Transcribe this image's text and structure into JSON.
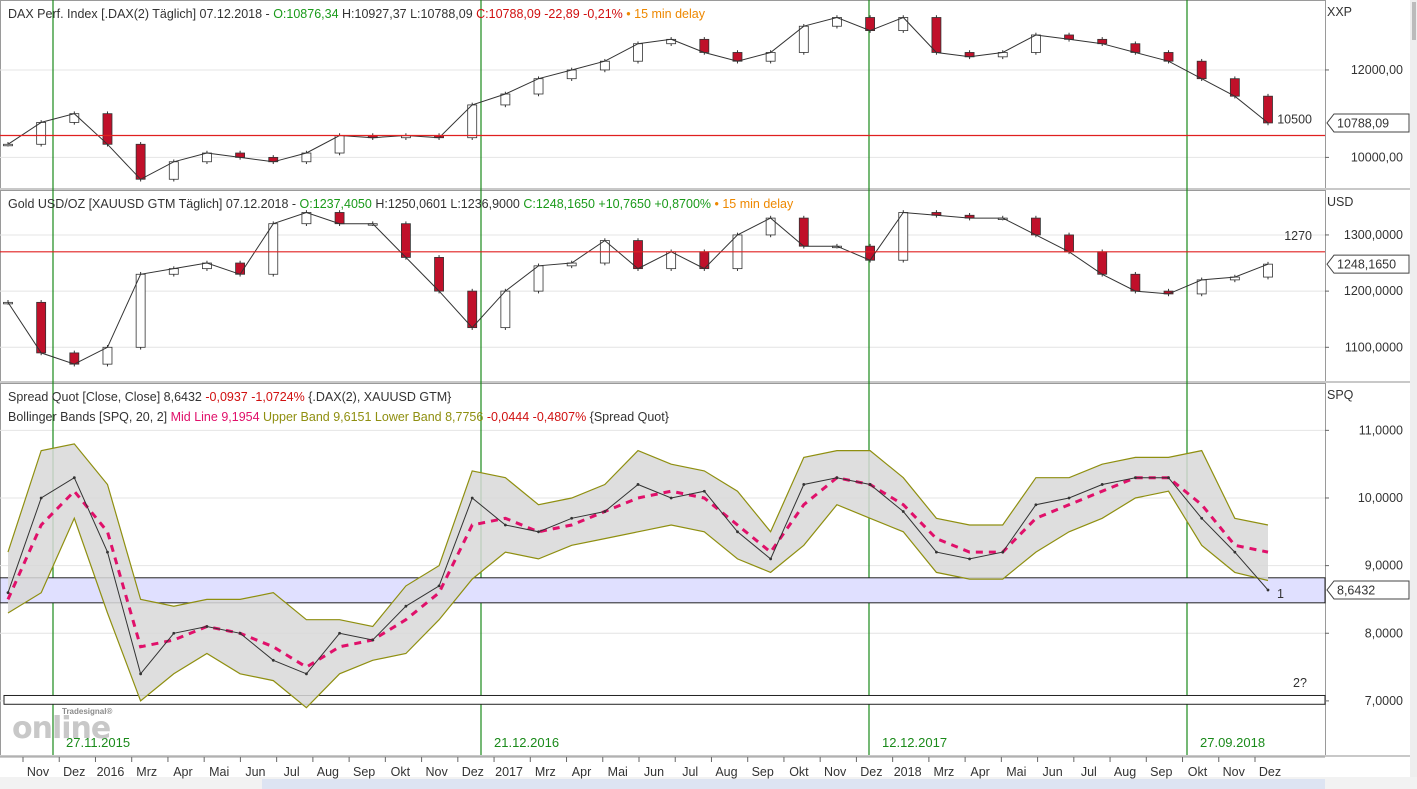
{
  "panels": {
    "dax": {
      "header": [
        {
          "text": "DAX Perf. Index [.DAX(2) Täglich] 07.12.2018 - ",
          "color": "black"
        },
        {
          "text": "O:10876,34 ",
          "color": "green"
        },
        {
          "text": "H:10927,37 L:10788,09 ",
          "color": "black"
        },
        {
          "text": "C:10788,09 -22,89 -0,21% ",
          "color": "red"
        },
        {
          "text": "• 15 min delay",
          "color": "orange"
        }
      ],
      "unit": "XXP",
      "tick_labels": [
        "12000,00",
        "10000,00"
      ],
      "last_value": "10788,09",
      "hline_label": "10500"
    },
    "gold": {
      "header": [
        {
          "text": "Gold USD/OZ [XAUUSD GTM Täglich] 07.12.2018 - ",
          "color": "black"
        },
        {
          "text": "O:1237,4050 ",
          "color": "green"
        },
        {
          "text": "H:1250,0601 L:1236,9000 ",
          "color": "black"
        },
        {
          "text": "C:1248,1650 +10,7650 +0,8700% ",
          "color": "green"
        },
        {
          "text": "• 15 min delay",
          "color": "orange"
        }
      ],
      "unit": "USD",
      "tick_labels": [
        "1300,0000",
        "1200,0000",
        "1100,0000"
      ],
      "last_value": "1248,1650",
      "hline_label": "1270"
    },
    "spread": {
      "header1": [
        {
          "text": "Spread Quot [Close, Close] ",
          "color": "black"
        },
        {
          "text": "8,6432 ",
          "color": "black"
        },
        {
          "text": "-0,0937 -1,0724% ",
          "color": "red"
        },
        {
          "text": "{.DAX(2), XAUUSD GTM}",
          "color": "black"
        }
      ],
      "header2": [
        {
          "text": "Bollinger Bands [SPQ, 20, 2] ",
          "color": "black"
        },
        {
          "text": "Mid Line 9,1954 ",
          "color": "pink"
        },
        {
          "text": "Upper Band 9,6151 ",
          "color": "olive"
        },
        {
          "text": "Lower Band 8,7756 ",
          "color": "olive"
        },
        {
          "text": "-0,0444 -0,4807% ",
          "color": "red"
        },
        {
          "text": "{Spread Quot}",
          "color": "black"
        }
      ],
      "unit": "SPQ",
      "tick_labels": [
        "11,0000",
        "10,0000",
        "9,0000",
        "8,0000",
        "7,0000"
      ],
      "last_value": "8,6432",
      "annotation_1": "1",
      "annotation_2": "2?"
    }
  },
  "date_markers": [
    "27.11.2015",
    "21.12.2016",
    "12.12.2017",
    "27.09.2018"
  ],
  "month_labels": [
    "Nov",
    "Dez",
    "2016",
    "Mrz",
    "Apr",
    "Mai",
    "Jun",
    "Jul",
    "Aug",
    "Sep",
    "Okt",
    "Nov",
    "Dez",
    "2017",
    "Mrz",
    "Apr",
    "Mai",
    "Jun",
    "Jul",
    "Aug",
    "Sep",
    "Okt",
    "Nov",
    "Dez",
    "2018",
    "Mrz",
    "Apr",
    "Mai",
    "Jun",
    "Jul",
    "Aug",
    "Sep",
    "Okt",
    "Nov",
    "Dez"
  ],
  "logo": {
    "small": "Tradesignal®",
    "main": "online"
  },
  "colors": {
    "up": "#ffffff",
    "down": "#c0102a",
    "wick": "#333333",
    "hline": "#e02020",
    "vline": "#1a8a1a",
    "band_fill": "#d8d8d8",
    "band_line": "#8f8f10",
    "mid_line": "#e0106a",
    "zone_fill": "#e0e0ff"
  },
  "chart_data": [
    {
      "type": "line",
      "title": "DAX Perf. Index [.DAX(2) Täglich]",
      "x": [
        "2015-10",
        "2015-11",
        "2015-12",
        "2016-01",
        "2016-02",
        "2016-03",
        "2016-04",
        "2016-05",
        "2016-06",
        "2016-07",
        "2016-08",
        "2016-09",
        "2016-10",
        "2016-11",
        "2016-12",
        "2017-01",
        "2017-02",
        "2017-03",
        "2017-04",
        "2017-05",
        "2017-06",
        "2017-07",
        "2017-08",
        "2017-09",
        "2017-10",
        "2017-11",
        "2017-12",
        "2018-01",
        "2018-02",
        "2018-03",
        "2018-04",
        "2018-05",
        "2018-06",
        "2018-07",
        "2018-08",
        "2018-09",
        "2018-10",
        "2018-11",
        "2018-12"
      ],
      "series": [
        {
          "name": "DAX",
          "values": [
            10300,
            10800,
            11000,
            10300,
            9500,
            9900,
            10100,
            10000,
            9900,
            10100,
            10500,
            10450,
            10500,
            10450,
            11200,
            11450,
            11800,
            12000,
            12200,
            12600,
            12700,
            12400,
            12200,
            12400,
            13000,
            13200,
            12900,
            13200,
            12400,
            12300,
            12400,
            12800,
            12700,
            12600,
            12400,
            12200,
            11800,
            11400,
            10788
          ]
        }
      ],
      "hline": 10500,
      "ylim": [
        9300,
        13600
      ]
    },
    {
      "type": "line",
      "title": "Gold USD/OZ [XAUUSD GTM Täglich]",
      "x": [
        "2015-10",
        "2015-11",
        "2015-12",
        "2016-01",
        "2016-02",
        "2016-03",
        "2016-04",
        "2016-05",
        "2016-06",
        "2016-07",
        "2016-08",
        "2016-09",
        "2016-10",
        "2016-11",
        "2016-12",
        "2017-01",
        "2017-02",
        "2017-03",
        "2017-04",
        "2017-05",
        "2017-06",
        "2017-07",
        "2017-08",
        "2017-09",
        "2017-10",
        "2017-11",
        "2017-12",
        "2018-01",
        "2018-02",
        "2018-03",
        "2018-04",
        "2018-05",
        "2018-06",
        "2018-07",
        "2018-08",
        "2018-09",
        "2018-10",
        "2018-11",
        "2018-12"
      ],
      "series": [
        {
          "name": "Gold",
          "values": [
            1180,
            1090,
            1070,
            1100,
            1230,
            1240,
            1250,
            1230,
            1320,
            1340,
            1320,
            1320,
            1260,
            1200,
            1135,
            1200,
            1245,
            1250,
            1290,
            1240,
            1270,
            1240,
            1300,
            1330,
            1280,
            1280,
            1255,
            1340,
            1335,
            1330,
            1330,
            1300,
            1270,
            1230,
            1200,
            1195,
            1220,
            1225,
            1248
          ]
        }
      ],
      "hline": 1270,
      "ylim": [
        1040,
        1380
      ]
    },
    {
      "type": "line",
      "title": "Spread Quot [Close, Close]",
      "x": [
        "2015-10",
        "2015-11",
        "2015-12",
        "2016-01",
        "2016-02",
        "2016-03",
        "2016-04",
        "2016-05",
        "2016-06",
        "2016-07",
        "2016-08",
        "2016-09",
        "2016-10",
        "2016-11",
        "2016-12",
        "2017-01",
        "2017-02",
        "2017-03",
        "2017-04",
        "2017-05",
        "2017-06",
        "2017-07",
        "2017-08",
        "2017-09",
        "2017-10",
        "2017-11",
        "2017-12",
        "2018-01",
        "2018-02",
        "2018-03",
        "2018-04",
        "2018-05",
        "2018-06",
        "2018-07",
        "2018-08",
        "2018-09",
        "2018-10",
        "2018-11",
        "2018-12"
      ],
      "series": [
        {
          "name": "Spread Quot",
          "values": [
            8.6,
            10.0,
            10.3,
            9.2,
            7.4,
            8.0,
            8.1,
            8.0,
            7.6,
            7.4,
            8.0,
            7.9,
            8.4,
            8.7,
            10.0,
            9.6,
            9.5,
            9.7,
            9.8,
            10.2,
            10.0,
            10.1,
            9.5,
            9.1,
            10.2,
            10.3,
            10.2,
            9.8,
            9.2,
            9.1,
            9.2,
            9.9,
            10.0,
            10.2,
            10.3,
            10.3,
            9.7,
            9.2,
            8.64
          ]
        },
        {
          "name": "Mid Line",
          "values": [
            8.5,
            9.6,
            10.1,
            9.5,
            7.8,
            7.9,
            8.1,
            8.0,
            7.8,
            7.5,
            7.8,
            7.9,
            8.2,
            8.6,
            9.6,
            9.7,
            9.5,
            9.6,
            9.8,
            10.0,
            10.1,
            10.0,
            9.6,
            9.2,
            9.9,
            10.3,
            10.2,
            9.9,
            9.4,
            9.2,
            9.2,
            9.7,
            9.9,
            10.1,
            10.3,
            10.3,
            9.9,
            9.3,
            9.2
          ]
        },
        {
          "name": "Upper Band",
          "values": [
            9.2,
            10.7,
            10.8,
            10.2,
            8.5,
            8.4,
            8.5,
            8.5,
            8.6,
            8.2,
            8.2,
            8.1,
            8.7,
            9.0,
            10.4,
            10.3,
            9.9,
            10.0,
            10.2,
            10.7,
            10.5,
            10.4,
            10.1,
            9.5,
            10.6,
            10.7,
            10.7,
            10.3,
            9.7,
            9.6,
            9.6,
            10.3,
            10.3,
            10.5,
            10.6,
            10.6,
            10.7,
            9.7,
            9.6
          ]
        },
        {
          "name": "Lower Band",
          "values": [
            8.3,
            8.6,
            9.7,
            8.3,
            7.0,
            7.4,
            7.7,
            7.4,
            7.3,
            6.9,
            7.4,
            7.6,
            7.7,
            8.2,
            8.8,
            9.2,
            9.1,
            9.3,
            9.4,
            9.5,
            9.6,
            9.5,
            9.1,
            8.9,
            9.3,
            9.9,
            9.7,
            9.5,
            8.9,
            8.8,
            8.8,
            9.2,
            9.5,
            9.7,
            10.0,
            10.1,
            9.3,
            8.9,
            8.78
          ]
        }
      ],
      "zone_1": [
        8.45,
        8.82
      ],
      "zone_2": [
        6.95,
        7.08
      ],
      "ylim": [
        6.2,
        11.7
      ]
    }
  ]
}
